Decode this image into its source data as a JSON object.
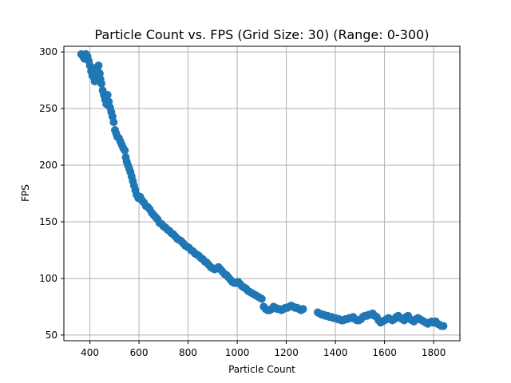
{
  "chart_data": {
    "type": "scatter",
    "title": "Particle Count vs. FPS (Grid Size: 30) (Range: 0-300)",
    "xlabel": "Particle Count",
    "ylabel": "FPS",
    "xlim": [
      294,
      1907
    ],
    "ylim": [
      45,
      305
    ],
    "xticks": [
      400,
      600,
      800,
      1000,
      1200,
      1400,
      1600,
      1800
    ],
    "yticks": [
      50,
      100,
      150,
      200,
      250,
      300
    ],
    "grid": true,
    "marker_color": "#1f77b4",
    "points": [
      [
        365,
        298
      ],
      [
        372,
        296
      ],
      [
        378,
        294
      ],
      [
        384,
        298
      ],
      [
        390,
        296
      ],
      [
        395,
        292
      ],
      [
        400,
        288
      ],
      [
        405,
        283
      ],
      [
        410,
        279
      ],
      [
        415,
        278
      ],
      [
        420,
        274
      ],
      [
        425,
        286
      ],
      [
        430,
        284
      ],
      [
        435,
        288
      ],
      [
        440,
        281
      ],
      [
        443,
        276
      ],
      [
        447,
        272
      ],
      [
        452,
        266
      ],
      [
        457,
        262
      ],
      [
        462,
        258
      ],
      [
        467,
        254
      ],
      [
        472,
        262
      ],
      [
        477,
        256
      ],
      [
        482,
        251
      ],
      [
        487,
        247
      ],
      [
        492,
        243
      ],
      [
        497,
        238
      ],
      [
        502,
        231
      ],
      [
        507,
        228
      ],
      [
        512,
        225
      ],
      [
        518,
        224
      ],
      [
        524,
        221
      ],
      [
        530,
        218
      ],
      [
        536,
        215
      ],
      [
        542,
        213
      ],
      [
        546,
        207
      ],
      [
        550,
        203
      ],
      [
        555,
        200
      ],
      [
        560,
        197
      ],
      [
        565,
        194
      ],
      [
        570,
        190
      ],
      [
        575,
        186
      ],
      [
        580,
        182
      ],
      [
        585,
        178
      ],
      [
        590,
        174
      ],
      [
        597,
        171
      ],
      [
        605,
        172
      ],
      [
        612,
        169
      ],
      [
        620,
        167
      ],
      [
        628,
        164
      ],
      [
        636,
        163
      ],
      [
        644,
        161
      ],
      [
        652,
        158
      ],
      [
        660,
        156
      ],
      [
        668,
        154
      ],
      [
        676,
        152
      ],
      [
        684,
        149
      ],
      [
        692,
        148
      ],
      [
        700,
        146
      ],
      [
        708,
        145
      ],
      [
        716,
        143
      ],
      [
        724,
        142
      ],
      [
        732,
        140
      ],
      [
        740,
        139
      ],
      [
        748,
        137
      ],
      [
        756,
        135
      ],
      [
        764,
        134
      ],
      [
        772,
        133
      ],
      [
        780,
        131
      ],
      [
        788,
        129
      ],
      [
        796,
        128
      ],
      [
        804,
        127
      ],
      [
        812,
        125
      ],
      [
        820,
        124
      ],
      [
        828,
        122
      ],
      [
        836,
        121
      ],
      [
        844,
        120
      ],
      [
        852,
        118
      ],
      [
        860,
        117
      ],
      [
        868,
        115
      ],
      [
        876,
        114
      ],
      [
        884,
        112
      ],
      [
        892,
        110
      ],
      [
        900,
        109
      ],
      [
        908,
        108
      ],
      [
        916,
        109
      ],
      [
        924,
        110
      ],
      [
        932,
        108
      ],
      [
        940,
        106
      ],
      [
        948,
        104
      ],
      [
        956,
        103
      ],
      [
        964,
        101
      ],
      [
        972,
        99
      ],
      [
        980,
        97
      ],
      [
        988,
        96
      ],
      [
        996,
        96
      ],
      [
        1004,
        97
      ],
      [
        1012,
        95
      ],
      [
        1020,
        93
      ],
      [
        1028,
        92
      ],
      [
        1036,
        91
      ],
      [
        1044,
        89
      ],
      [
        1052,
        88
      ],
      [
        1060,
        87
      ],
      [
        1068,
        86
      ],
      [
        1076,
        85
      ],
      [
        1084,
        84
      ],
      [
        1092,
        83
      ],
      [
        1100,
        82
      ],
      [
        1108,
        75
      ],
      [
        1116,
        73
      ],
      [
        1124,
        72
      ],
      [
        1132,
        72
      ],
      [
        1140,
        73
      ],
      [
        1148,
        75
      ],
      [
        1156,
        74
      ],
      [
        1164,
        73
      ],
      [
        1172,
        73
      ],
      [
        1180,
        72
      ],
      [
        1188,
        73
      ],
      [
        1196,
        74
      ],
      [
        1204,
        74
      ],
      [
        1212,
        75
      ],
      [
        1220,
        76
      ],
      [
        1228,
        75
      ],
      [
        1236,
        74
      ],
      [
        1244,
        74
      ],
      [
        1252,
        73
      ],
      [
        1260,
        72
      ],
      [
        1268,
        73
      ],
      [
        1328,
        70
      ],
      [
        1336,
        69
      ],
      [
        1344,
        68
      ],
      [
        1352,
        68
      ],
      [
        1360,
        67
      ],
      [
        1368,
        67
      ],
      [
        1376,
        66
      ],
      [
        1384,
        66
      ],
      [
        1392,
        65
      ],
      [
        1400,
        65
      ],
      [
        1408,
        64
      ],
      [
        1416,
        64
      ],
      [
        1424,
        63
      ],
      [
        1432,
        63
      ],
      [
        1440,
        64
      ],
      [
        1448,
        64
      ],
      [
        1456,
        65
      ],
      [
        1464,
        65
      ],
      [
        1472,
        66
      ],
      [
        1480,
        64
      ],
      [
        1488,
        63
      ],
      [
        1496,
        63
      ],
      [
        1504,
        64
      ],
      [
        1512,
        66
      ],
      [
        1520,
        67
      ],
      [
        1528,
        67
      ],
      [
        1536,
        68
      ],
      [
        1544,
        68
      ],
      [
        1552,
        69
      ],
      [
        1560,
        67
      ],
      [
        1568,
        66
      ],
      [
        1576,
        63
      ],
      [
        1584,
        61
      ],
      [
        1592,
        62
      ],
      [
        1600,
        63
      ],
      [
        1608,
        64
      ],
      [
        1616,
        65
      ],
      [
        1624,
        64
      ],
      [
        1632,
        63
      ],
      [
        1640,
        64
      ],
      [
        1648,
        66
      ],
      [
        1656,
        67
      ],
      [
        1664,
        65
      ],
      [
        1672,
        64
      ],
      [
        1680,
        63
      ],
      [
        1688,
        66
      ],
      [
        1696,
        67
      ],
      [
        1704,
        64
      ],
      [
        1712,
        63
      ],
      [
        1720,
        62
      ],
      [
        1728,
        64
      ],
      [
        1736,
        65
      ],
      [
        1744,
        64
      ],
      [
        1752,
        63
      ],
      [
        1760,
        62
      ],
      [
        1768,
        61
      ],
      [
        1776,
        60
      ],
      [
        1784,
        61
      ],
      [
        1792,
        62
      ],
      [
        1800,
        61
      ],
      [
        1808,
        62
      ],
      [
        1816,
        60
      ],
      [
        1824,
        59
      ],
      [
        1832,
        58
      ],
      [
        1840,
        58
      ]
    ]
  }
}
